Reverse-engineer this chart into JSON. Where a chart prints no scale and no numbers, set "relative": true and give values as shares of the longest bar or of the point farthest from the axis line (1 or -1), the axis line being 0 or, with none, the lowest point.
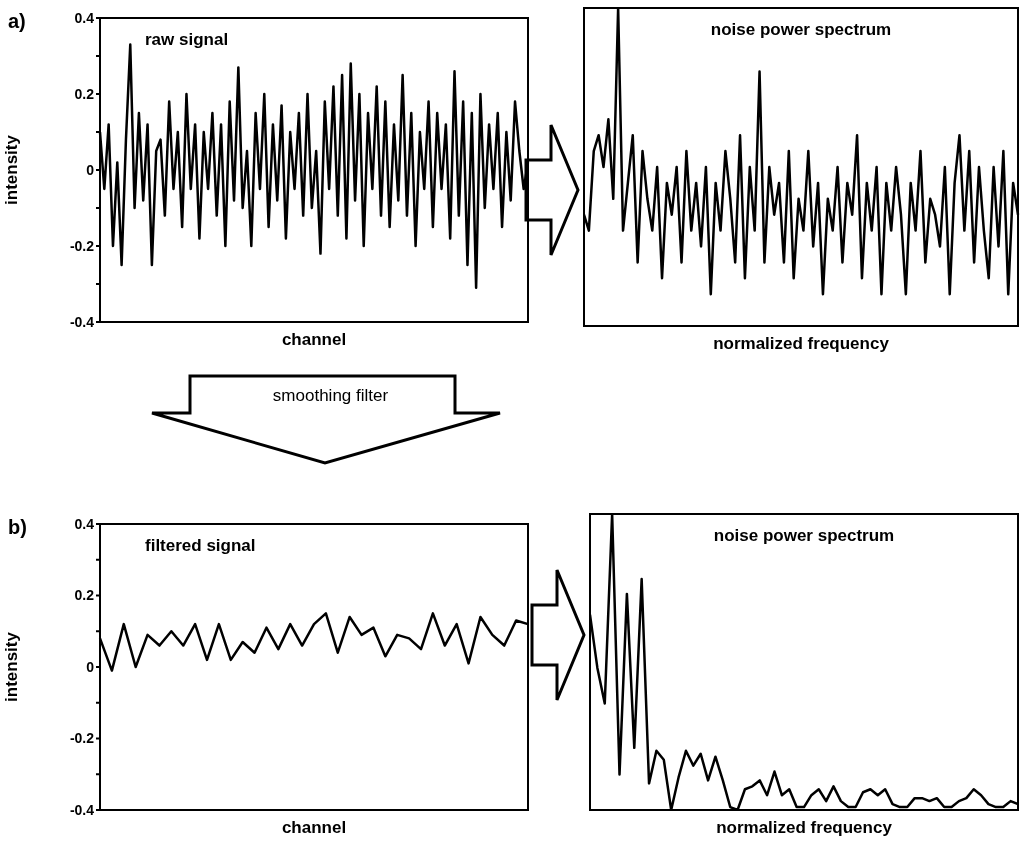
{
  "chart_data": [
    {
      "type": "line",
      "title": "raw signal",
      "xlabel": "channel",
      "ylabel": "intensity",
      "annotations": [
        "a)",
        "smoothing filter"
      ],
      "color": "#000000",
      "tick_labels": "y",
      "ylim": [
        -0.4,
        0.4
      ],
      "yticks": [
        -0.4,
        {
          "value": -0.3,
          "label": null
        },
        -0.2,
        {
          "value": -0.1,
          "label": null
        },
        0,
        {
          "value": 0.1,
          "label": null
        },
        0.2,
        {
          "value": 0.3,
          "label": null
        },
        0.4
      ],
      "categories": [
        null,
        null,
        null,
        null,
        null,
        null,
        null,
        null,
        null,
        null,
        null,
        null,
        null,
        null,
        null,
        null,
        null,
        null,
        null,
        null,
        null,
        null,
        null,
        null,
        null,
        null,
        null,
        null,
        null,
        null,
        null,
        null,
        null,
        null,
        null,
        null,
        null,
        null,
        null,
        null,
        null,
        null,
        null,
        null,
        null,
        null,
        null,
        null,
        null,
        null,
        null,
        null,
        null,
        null,
        null,
        null,
        null,
        null,
        null,
        null,
        null,
        null,
        null,
        null,
        null,
        null,
        null,
        null,
        null,
        null,
        null,
        null,
        null,
        null,
        null,
        null,
        null,
        null,
        null,
        null,
        null,
        null,
        null,
        null,
        null,
        null,
        null,
        null,
        null,
        null,
        null,
        null,
        null,
        null,
        null,
        null,
        null,
        null,
        null,
        null
      ],
      "values": [
        0.1,
        -0.05,
        0.12,
        -0.2,
        0.02,
        -0.25,
        0.08,
        0.33,
        -0.1,
        0.15,
        -0.08,
        0.12,
        -0.25,
        0.05,
        0.08,
        -0.12,
        0.18,
        -0.05,
        0.1,
        -0.15,
        0.2,
        -0.05,
        0.12,
        -0.18,
        0.1,
        -0.05,
        0.15,
        -0.12,
        0.12,
        -0.2,
        0.18,
        -0.08,
        0.27,
        -0.1,
        0.05,
        -0.2,
        0.15,
        -0.05,
        0.2,
        -0.15,
        0.12,
        -0.08,
        0.17,
        -0.18,
        0.1,
        -0.05,
        0.15,
        -0.12,
        0.2,
        -0.1,
        0.05,
        -0.22,
        0.18,
        -0.05,
        0.22,
        -0.12,
        0.25,
        -0.18,
        0.28,
        -0.08,
        0.2,
        -0.2,
        0.15,
        -0.05,
        0.22,
        -0.12,
        0.18,
        -0.15,
        0.12,
        -0.08,
        0.25,
        -0.12,
        0.15,
        -0.2,
        0.1,
        -0.05,
        0.18,
        -0.15,
        0.15,
        -0.05,
        0.12,
        -0.18,
        0.26,
        -0.12,
        0.18,
        -0.25,
        0.15,
        -0.31,
        0.2,
        -0.1,
        0.12,
        -0.05,
        0.15,
        -0.15,
        0.1,
        -0.08,
        0.18,
        0.05,
        -0.05,
        0.02
      ]
    },
    {
      "type": "line",
      "title": "noise power spectrum",
      "xlabel": "normalized frequency",
      "color": "#000000",
      "tick_labels": false,
      "relative": true,
      "categories": [
        null,
        null,
        null,
        null,
        null,
        null,
        null,
        null,
        null,
        null,
        null,
        null,
        null,
        null,
        null,
        null,
        null,
        null,
        null,
        null,
        null,
        null,
        null,
        null,
        null,
        null,
        null,
        null,
        null,
        null,
        null,
        null,
        null,
        null,
        null,
        null,
        null,
        null,
        null,
        null,
        null,
        null,
        null,
        null,
        null,
        null,
        null,
        null,
        null,
        null,
        null,
        null,
        null,
        null,
        null,
        null,
        null,
        null,
        null,
        null,
        null,
        null,
        null,
        null,
        null,
        null,
        null,
        null,
        null,
        null,
        null,
        null,
        null,
        null,
        null,
        null,
        null,
        null,
        null,
        null,
        null,
        null,
        null,
        null,
        null,
        null,
        null,
        null,
        null,
        null
      ],
      "values": [
        0.35,
        0.3,
        0.55,
        0.6,
        0.5,
        0.65,
        0.4,
        1.0,
        0.3,
        0.45,
        0.6,
        0.2,
        0.55,
        0.4,
        0.3,
        0.5,
        0.15,
        0.45,
        0.35,
        0.5,
        0.2,
        0.55,
        0.3,
        0.45,
        0.25,
        0.5,
        0.1,
        0.45,
        0.3,
        0.55,
        0.4,
        0.2,
        0.6,
        0.15,
        0.5,
        0.3,
        0.8,
        0.2,
        0.5,
        0.35,
        0.45,
        0.2,
        0.55,
        0.15,
        0.4,
        0.3,
        0.55,
        0.25,
        0.45,
        0.1,
        0.4,
        0.3,
        0.5,
        0.2,
        0.45,
        0.35,
        0.6,
        0.15,
        0.45,
        0.3,
        0.5,
        0.1,
        0.45,
        0.3,
        0.5,
        0.35,
        0.1,
        0.45,
        0.3,
        0.55,
        0.2,
        0.4,
        0.35,
        0.25,
        0.5,
        0.1,
        0.45,
        0.6,
        0.3,
        0.55,
        0.2,
        0.5,
        0.3,
        0.15,
        0.5,
        0.25,
        0.55,
        0.1,
        0.45,
        0.35
      ]
    },
    {
      "type": "line",
      "title": "filtered signal",
      "xlabel": "channel",
      "ylabel": "intensity",
      "annotations": [
        "b)"
      ],
      "color": "#000000",
      "tick_labels": "y",
      "ylim": [
        -0.4,
        0.4
      ],
      "yticks": [
        -0.4,
        {
          "value": -0.3,
          "label": null
        },
        -0.2,
        {
          "value": -0.1,
          "label": null
        },
        0,
        {
          "value": 0.1,
          "label": null
        },
        0.2,
        {
          "value": 0.3,
          "label": null
        },
        0.4
      ],
      "categories": [
        null,
        null,
        null,
        null,
        null,
        null,
        null,
        null,
        null,
        null,
        null,
        null,
        null,
        null,
        null,
        null,
        null,
        null,
        null,
        null,
        null,
        null,
        null,
        null,
        null,
        null,
        null,
        null,
        null,
        null,
        null,
        null,
        null,
        null,
        null,
        null,
        null
      ],
      "values": [
        0.08,
        -0.01,
        0.12,
        0.0,
        0.09,
        0.06,
        0.1,
        0.06,
        0.12,
        0.02,
        0.12,
        0.02,
        0.07,
        0.04,
        0.11,
        0.05,
        0.12,
        0.06,
        0.12,
        0.15,
        0.04,
        0.14,
        0.09,
        0.11,
        0.03,
        0.09,
        0.08,
        0.05,
        0.15,
        0.06,
        0.12,
        0.01,
        0.14,
        0.09,
        0.06,
        0.13,
        0.12
      ]
    },
    {
      "type": "line",
      "title": "noise power spectrum",
      "xlabel": "normalized frequency",
      "color": "#000000",
      "tick_labels": false,
      "relative": true,
      "categories": [
        null,
        null,
        null,
        null,
        null,
        null,
        null,
        null,
        null,
        null,
        null,
        null,
        null,
        null,
        null,
        null,
        null,
        null,
        null,
        null,
        null,
        null,
        null,
        null,
        null,
        null,
        null,
        null,
        null,
        null,
        null,
        null,
        null,
        null,
        null,
        null,
        null,
        null,
        null,
        null,
        null,
        null,
        null,
        null,
        null,
        null,
        null,
        null,
        null,
        null,
        null,
        null,
        null,
        null,
        null,
        null,
        null,
        null,
        null
      ],
      "values": [
        0.66,
        0.48,
        0.36,
        1.0,
        0.12,
        0.73,
        0.21,
        0.78,
        0.09,
        0.2,
        0.17,
        0,
        0.11,
        0.2,
        0.15,
        0.19,
        0.1,
        0.18,
        0.1,
        0.01,
        0,
        0.07,
        0.08,
        0.1,
        0.05,
        0.13,
        0.05,
        0.07,
        0.01,
        0.01,
        0.05,
        0.07,
        0.03,
        0.08,
        0.03,
        0.01,
        0.01,
        0.06,
        0.07,
        0.05,
        0.07,
        0.02,
        0.01,
        0.01,
        0.04,
        0.04,
        0.03,
        0.04,
        0.01,
        0.01,
        0.03,
        0.04,
        0.07,
        0.05,
        0.02,
        0.01,
        0.01,
        0.03,
        0.02
      ]
    }
  ]
}
